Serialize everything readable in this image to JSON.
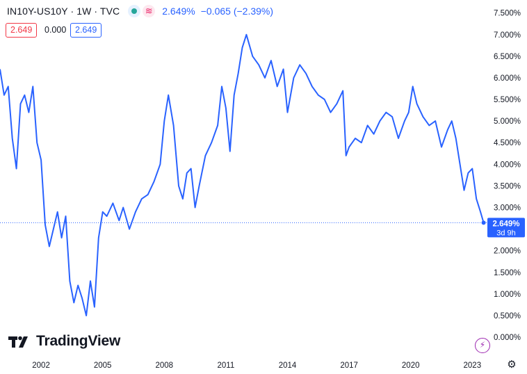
{
  "header": {
    "symbol": "IN10Y-US10Y · 1W · TVC",
    "price": "2.649%",
    "change": "−0.065 (−2.39%)",
    "status_icons": [
      "eye-dot-icon",
      "wave-icon"
    ]
  },
  "quote_boxes": {
    "bid": "2.649",
    "spread": "0.000",
    "ask": "2.649"
  },
  "price_label": {
    "value": "2.649%",
    "countdown": "3d 9h"
  },
  "brand": {
    "name": "TradingView"
  },
  "colors": {
    "line": "#2962ff",
    "bid": "#f23645",
    "ask": "#2962ff",
    "grid": "#f0f3fa",
    "axis_text": "#131722"
  },
  "chart_data": {
    "type": "line",
    "title": "",
    "xlabel": "",
    "ylabel": "",
    "x_ticks": [
      "2002",
      "2005",
      "2008",
      "2011",
      "2014",
      "2017",
      "2020",
      "2023"
    ],
    "y_ticks": [
      "0.000%",
      "0.500%",
      "1.000%",
      "1.500%",
      "2.000%",
      "2.500%",
      "3.000%",
      "3.500%",
      "4.000%",
      "4.500%",
      "5.000%",
      "5.500%",
      "6.000%",
      "6.500%",
      "7.000%",
      "7.500%"
    ],
    "ylim": [
      -0.4,
      7.8
    ],
    "xlim": [
      2000.0,
      2023.7
    ],
    "grid": false,
    "series": [
      {
        "x": [
          2000.0,
          2000.2,
          2000.4,
          2000.6,
          2000.8,
          2001.0,
          2001.2,
          2001.4,
          2001.6,
          2001.8,
          2002.0,
          2002.2,
          2002.4,
          2002.6,
          2002.8,
          2003.0,
          2003.2,
          2003.4,
          2003.6,
          2003.8,
          2004.0,
          2004.2,
          2004.4,
          2004.6,
          2004.8,
          2005.0,
          2005.2,
          2005.5,
          2005.8,
          2006.0,
          2006.3,
          2006.6,
          2006.9,
          2007.2,
          2007.5,
          2007.8,
          2008.0,
          2008.2,
          2008.45,
          2008.7,
          2008.9,
          2009.1,
          2009.3,
          2009.5,
          2009.7,
          2010.0,
          2010.3,
          2010.6,
          2010.8,
          2011.0,
          2011.2,
          2011.4,
          2011.6,
          2011.8,
          2012.0,
          2012.3,
          2012.6,
          2012.9,
          2013.2,
          2013.5,
          2013.8,
          2014.0,
          2014.3,
          2014.6,
          2014.9,
          2015.2,
          2015.5,
          2015.8,
          2016.1,
          2016.4,
          2016.7,
          2016.85,
          2017.0,
          2017.3,
          2017.6,
          2017.9,
          2018.2,
          2018.5,
          2018.8,
          2019.1,
          2019.4,
          2019.7,
          2019.9,
          2020.1,
          2020.3,
          2020.6,
          2020.9,
          2021.2,
          2021.5,
          2021.8,
          2022.0,
          2022.2,
          2022.4,
          2022.6,
          2022.8,
          2023.0,
          2023.2,
          2023.4,
          2023.55
        ],
        "y": [
          6.2,
          5.6,
          5.8,
          4.6,
          3.9,
          5.4,
          5.6,
          5.2,
          5.8,
          4.5,
          4.1,
          2.6,
          2.1,
          2.5,
          2.9,
          2.3,
          2.8,
          1.3,
          0.8,
          1.2,
          0.9,
          0.5,
          1.3,
          0.7,
          2.3,
          2.9,
          2.8,
          3.1,
          2.7,
          3.0,
          2.5,
          2.9,
          3.2,
          3.3,
          3.6,
          4.0,
          5.0,
          5.6,
          4.9,
          3.5,
          3.2,
          3.8,
          3.9,
          3.0,
          3.5,
          4.2,
          4.5,
          4.9,
          5.8,
          5.3,
          4.3,
          5.6,
          6.1,
          6.7,
          7.0,
          6.5,
          6.3,
          6.0,
          6.4,
          5.8,
          6.2,
          5.2,
          6.0,
          6.3,
          6.1,
          5.8,
          5.6,
          5.5,
          5.2,
          5.4,
          5.7,
          4.2,
          4.4,
          4.6,
          4.5,
          4.9,
          4.7,
          5.0,
          5.2,
          5.1,
          4.6,
          5.0,
          5.2,
          5.8,
          5.4,
          5.1,
          4.9,
          5.0,
          4.4,
          4.8,
          5.0,
          4.6,
          4.0,
          3.4,
          3.8,
          3.9,
          3.2,
          2.9,
          2.649
        ]
      }
    ]
  }
}
